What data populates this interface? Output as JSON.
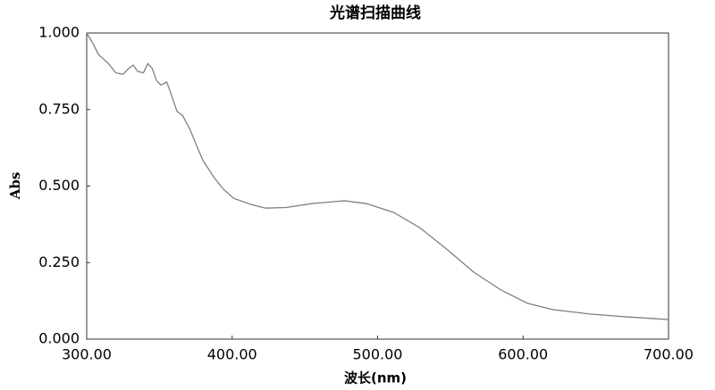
{
  "chart_data": {
    "type": "line",
    "title": "光谱扫描曲线",
    "x_label": "波长(nm)",
    "y_label": "Abs",
    "x": [
      300,
      305,
      308,
      315,
      320,
      325,
      329,
      332,
      335,
      339,
      342,
      345,
      348,
      351,
      355,
      357,
      362,
      366,
      371,
      376,
      380,
      388,
      394,
      401,
      413,
      423,
      437,
      455,
      477,
      492,
      511,
      529,
      548,
      566,
      585,
      603,
      621,
      646,
      670,
      700
    ],
    "values": [
      1.0,
      0.96,
      0.93,
      0.9,
      0.87,
      0.865,
      0.885,
      0.895,
      0.875,
      0.87,
      0.9,
      0.885,
      0.845,
      0.83,
      0.84,
      0.815,
      0.745,
      0.73,
      0.685,
      0.627,
      0.583,
      0.525,
      0.49,
      0.46,
      0.44,
      0.428,
      0.43,
      0.443,
      0.452,
      0.443,
      0.414,
      0.364,
      0.292,
      0.219,
      0.16,
      0.117,
      0.096,
      0.082,
      0.073,
      0.064
    ],
    "color": "#808080",
    "xlim": [
      300,
      700
    ],
    "xticks": [
      {
        "value": 300,
        "label": "300.00"
      },
      {
        "value": 400,
        "label": "400.00"
      },
      {
        "value": 500,
        "label": "500.00"
      },
      {
        "value": 600,
        "label": "600.00"
      },
      {
        "value": 700,
        "label": "700.00"
      }
    ],
    "ylim": [
      0,
      1
    ],
    "yticks": [
      {
        "value": 0,
        "label": "0.000"
      },
      {
        "value": 0.25,
        "label": "0.250"
      },
      {
        "value": 0.5,
        "label": "0.500"
      },
      {
        "value": 0.75,
        "label": "0.750"
      },
      {
        "value": 1,
        "label": "1.000"
      }
    ],
    "grid": false
  }
}
